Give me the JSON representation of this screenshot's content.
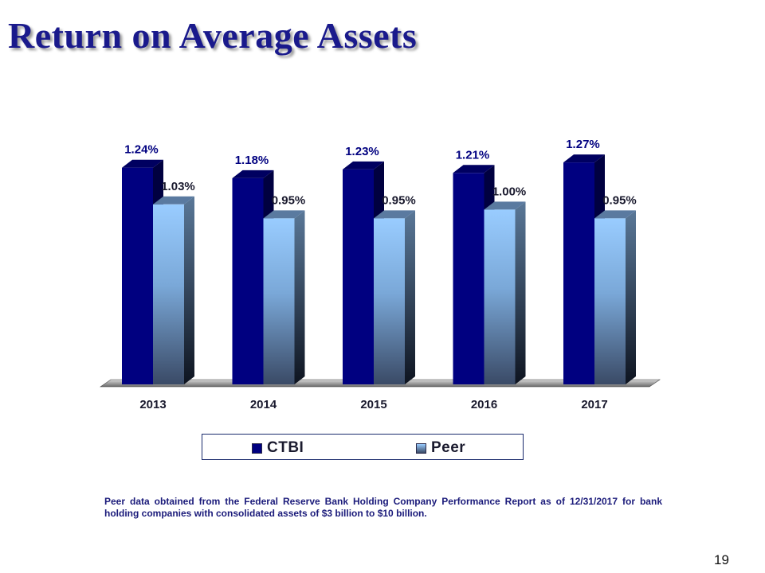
{
  "page": {
    "title": "Return on Average Assets",
    "footnote": "Peer data obtained from the Federal Reserve Bank Holding Company Performance Report as of 12/31/2017 for bank holding companies with consolidated assets  of $3 billion to $10 billion.",
    "page_number": "19"
  },
  "colors": {
    "title": "#1a1a8c",
    "ctbi": "#000080",
    "peer_top": "#99ccff",
    "peer_bottom": "#3a4a66"
  },
  "chart_data": {
    "type": "bar",
    "categories": [
      "2013",
      "2014",
      "2015",
      "2016",
      "2017"
    ],
    "series": [
      {
        "name": "CTBI",
        "values": [
          1.24,
          1.18,
          1.23,
          1.21,
          1.27
        ],
        "labels": [
          "1.24%",
          "1.18%",
          "1.23%",
          "1.21%",
          "1.27%"
        ]
      },
      {
        "name": "Peer",
        "values": [
          1.03,
          0.95,
          0.95,
          1.0,
          0.95
        ],
        "labels": [
          "1.03%",
          "0.95%",
          "0.95%",
          "1.00%",
          "0.95%"
        ]
      }
    ],
    "title": "",
    "xlabel": "",
    "ylabel": "",
    "ylim": [
      0,
      1.4
    ],
    "grid": false,
    "legend_position": "bottom",
    "style": "3d"
  }
}
